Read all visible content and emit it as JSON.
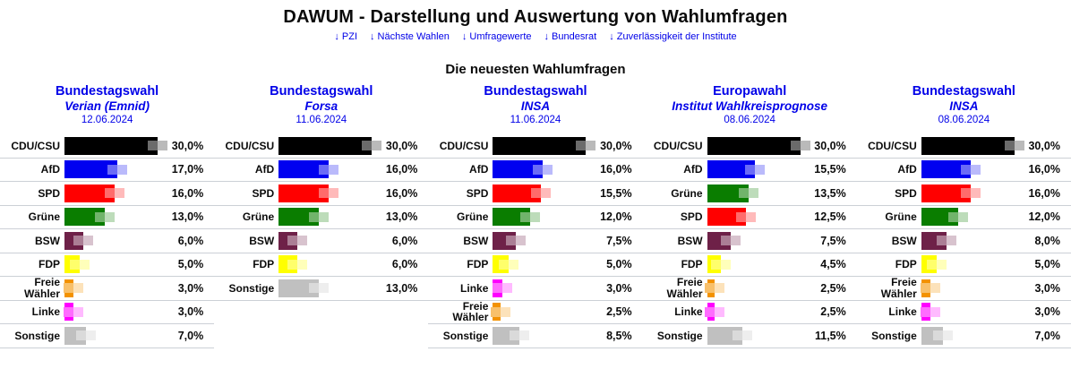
{
  "page_title": "DAWUM - Darstellung und Auswertung von Wahlumfragen",
  "nav_links": [
    "↓ PZI",
    "↓ Nächste Wahlen",
    "↓ Umfragewerte",
    "↓ Bundesrat",
    "↓ Zuverlässigkeit der Institute"
  ],
  "section_title": "Die neuesten Wahlumfragen",
  "accent_color": "#0000E8",
  "party_colors": {
    "CDU/CSU": "#000000",
    "AfD": "#0000F0",
    "SPD": "#FF0000",
    "Grüne": "#0A7D00",
    "BSW": "#6E2148",
    "FDP": "#FFFF00",
    "Freie Wähler": "#F39200",
    "Linke": "#FF00FF",
    "Sonstige": "#C0C0C0"
  },
  "chart_data": [
    {
      "type": "bar",
      "title": "Bundestagswahl",
      "institute": "Verian (Emnid)",
      "date": "12.06.2024",
      "unit": "%",
      "xlim": [
        0,
        30
      ],
      "categories": [
        "CDU/CSU",
        "AfD",
        "SPD",
        "Grüne",
        "BSW",
        "FDP",
        "Freie Wähler",
        "Linke",
        "Sonstige"
      ],
      "values": [
        30.0,
        17.0,
        16.0,
        13.0,
        6.0,
        5.0,
        3.0,
        3.0,
        7.0
      ]
    },
    {
      "type": "bar",
      "title": "Bundestagswahl",
      "institute": "Forsa",
      "date": "11.06.2024",
      "unit": "%",
      "xlim": [
        0,
        30
      ],
      "categories": [
        "CDU/CSU",
        "AfD",
        "SPD",
        "Grüne",
        "BSW",
        "FDP",
        "Sonstige"
      ],
      "values": [
        30.0,
        16.0,
        16.0,
        13.0,
        6.0,
        6.0,
        13.0
      ]
    },
    {
      "type": "bar",
      "title": "Bundestagswahl",
      "institute": "INSA",
      "date": "11.06.2024",
      "unit": "%",
      "xlim": [
        0,
        30
      ],
      "categories": [
        "CDU/CSU",
        "AfD",
        "SPD",
        "Grüne",
        "BSW",
        "FDP",
        "Linke",
        "Freie Wähler",
        "Sonstige"
      ],
      "values": [
        30.0,
        16.0,
        15.5,
        12.0,
        7.5,
        5.0,
        3.0,
        2.5,
        8.5
      ]
    },
    {
      "type": "bar",
      "title": "Europawahl",
      "institute": "Institut Wahlkreisprognose",
      "date": "08.06.2024",
      "unit": "%",
      "xlim": [
        0,
        30
      ],
      "categories": [
        "CDU/CSU",
        "AfD",
        "Grüne",
        "SPD",
        "BSW",
        "FDP",
        "Freie Wähler",
        "Linke",
        "Sonstige"
      ],
      "values": [
        30.0,
        15.5,
        13.5,
        12.5,
        7.5,
        4.5,
        2.5,
        2.5,
        11.5
      ]
    },
    {
      "type": "bar",
      "title": "Bundestagswahl",
      "institute": "INSA",
      "date": "08.06.2024",
      "unit": "%",
      "xlim": [
        0,
        30
      ],
      "categories": [
        "CDU/CSU",
        "AfD",
        "SPD",
        "Grüne",
        "BSW",
        "FDP",
        "Freie Wähler",
        "Linke",
        "Sonstige"
      ],
      "values": [
        30.0,
        16.0,
        16.0,
        12.0,
        8.0,
        5.0,
        3.0,
        3.0,
        7.0
      ]
    }
  ]
}
